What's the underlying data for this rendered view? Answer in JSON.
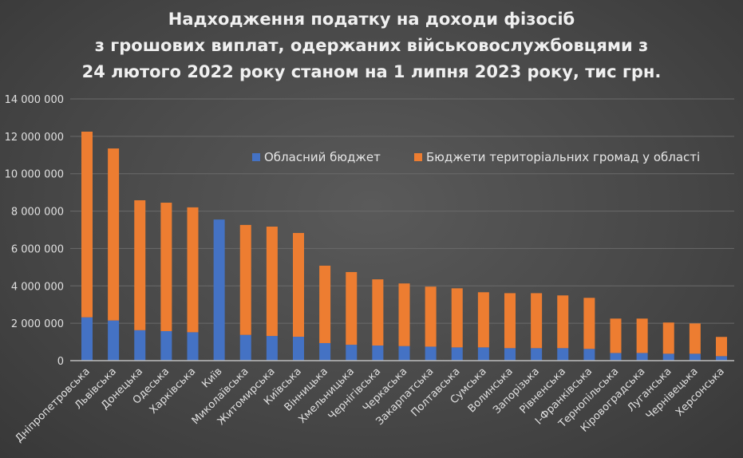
{
  "chart_data": {
    "type": "bar",
    "stacked": true,
    "title": [
      "Надходження податку на доходи фізосіб",
      "з грошових виплат, одержаних військовослужбовцями з",
      "24 лютого 2022 року станом на 1 липня 2023 року, тис грн."
    ],
    "xlabel": "",
    "ylabel": "",
    "ylim": [
      0,
      14000000
    ],
    "yticks": [
      "0",
      "2 000 000",
      "4 000 000",
      "6 000 000",
      "8 000 000",
      "10 000 000",
      "12 000 000",
      "14 000 000"
    ],
    "grid": true,
    "legend_position": "top-right",
    "categories": [
      "Дніпропетровська",
      "Львівська",
      "Донецька",
      "Одеська",
      "Харківська",
      "Київ",
      "Миколаївська",
      "Житомирська",
      "Київська",
      "Вінницька",
      "Хмельницька",
      "Чернігівська",
      "Черкаська",
      "Закарпатська",
      "Полтавська",
      "Сумська",
      "Волинська",
      "Запорізька",
      "Рівненська",
      "І-Франківська",
      "Тернопільська",
      "Кіровоградська",
      "Луганська",
      "Чернівецька",
      "Херсонська"
    ],
    "series": [
      {
        "name": "Обласний бюджет",
        "color": "#4472c4",
        "values": [
          2320000,
          2150000,
          1630000,
          1580000,
          1520000,
          7550000,
          1380000,
          1320000,
          1280000,
          940000,
          850000,
          810000,
          780000,
          750000,
          710000,
          710000,
          670000,
          670000,
          670000,
          630000,
          410000,
          410000,
          370000,
          370000,
          240000
        ]
      },
      {
        "name": "Бюджети територіальних громад у області",
        "color": "#ed7d31",
        "values": [
          9930000,
          9200000,
          6950000,
          6870000,
          6680000,
          0,
          5880000,
          5850000,
          5550000,
          4140000,
          3890000,
          3540000,
          3350000,
          3210000,
          3160000,
          2950000,
          2940000,
          2940000,
          2820000,
          2730000,
          1840000,
          1840000,
          1670000,
          1620000,
          1030000
        ]
      }
    ]
  }
}
